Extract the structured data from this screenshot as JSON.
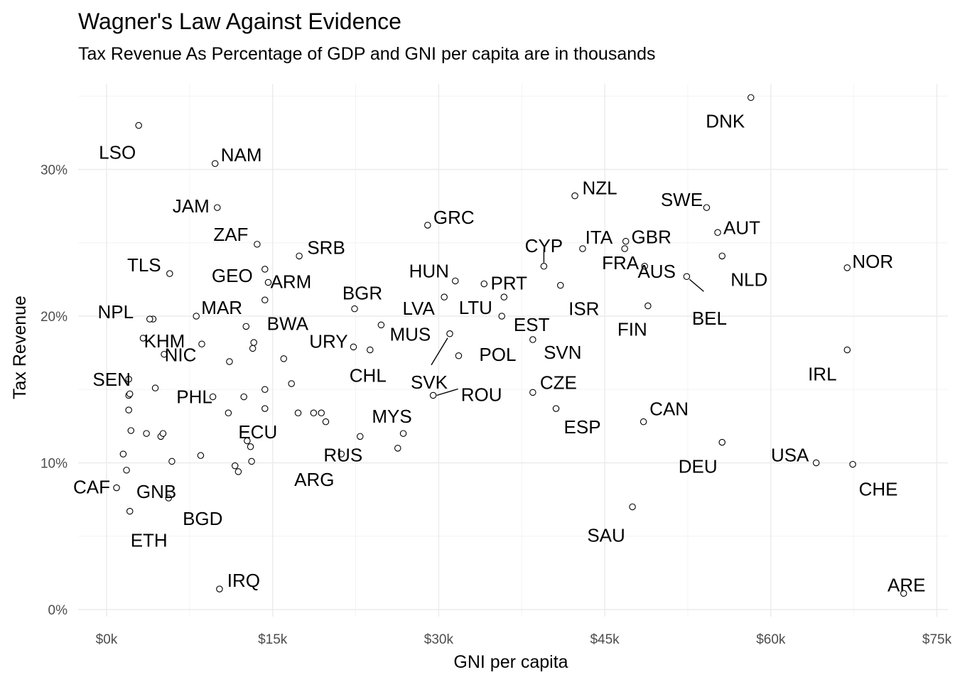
{
  "chart_data": {
    "type": "scatter",
    "title": "Wagner's Law Against Evidence",
    "subtitle": "Tax Revenue As Percentage of GDP and GNI per capita are in thousands",
    "xlabel": "GNI per capita",
    "ylabel": "Tax Revenue",
    "xlim": [
      -2.5,
      76
    ],
    "ylim": [
      -0.5,
      35.3
    ],
    "x_ticks": [
      {
        "value": 0,
        "label": "$0k"
      },
      {
        "value": 15,
        "label": "$15k"
      },
      {
        "value": 30,
        "label": "$30k"
      },
      {
        "value": 45,
        "label": "$45k"
      },
      {
        "value": 60,
        "label": "$60k"
      },
      {
        "value": 75,
        "label": "$75k"
      }
    ],
    "y_ticks": [
      {
        "value": 0,
        "label": "0%"
      },
      {
        "value": 10,
        "label": "10%"
      },
      {
        "value": 20,
        "label": "20%"
      },
      {
        "value": 30,
        "label": "30%"
      }
    ],
    "labeled_points": [
      {
        "code": "LSO",
        "x": 2.9,
        "y": 33.0
      },
      {
        "code": "NAM",
        "x": 9.8,
        "y": 30.4
      },
      {
        "code": "JAM",
        "x": 10.0,
        "y": 27.4
      },
      {
        "code": "ZAF",
        "x": 13.6,
        "y": 24.9
      },
      {
        "code": "SRB",
        "x": 17.4,
        "y": 24.1
      },
      {
        "code": "GEO",
        "x": 14.3,
        "y": 23.2
      },
      {
        "code": "ARM",
        "x": 14.6,
        "y": 22.3
      },
      {
        "code": "TLS",
        "x": 5.7,
        "y": 22.9
      },
      {
        "code": "BWA",
        "x": 14.3,
        "y": 21.1
      },
      {
        "code": "MAR",
        "x": 8.1,
        "y": 20.0
      },
      {
        "code": "NPL",
        "x": 3.9,
        "y": 19.8
      },
      {
        "code": "KHM",
        "x": 3.3,
        "y": 18.5
      },
      {
        "code": "NIC",
        "x": 5.2,
        "y": 17.4
      },
      {
        "code": "SEN",
        "x": 2.0,
        "y": 15.7
      },
      {
        "code": "PHL",
        "x": 9.6,
        "y": 14.5
      },
      {
        "code": "ECU",
        "x": 14.3,
        "y": 13.7
      },
      {
        "code": "URY",
        "x": 22.3,
        "y": 17.9
      },
      {
        "code": "BGR",
        "x": 22.4,
        "y": 20.5
      },
      {
        "code": "CHL",
        "x": 23.8,
        "y": 17.7
      },
      {
        "code": "MUS",
        "x": 24.8,
        "y": 19.4
      },
      {
        "code": "LVA",
        "x": 30.5,
        "y": 21.3
      },
      {
        "code": "HUN",
        "x": 31.5,
        "y": 22.4
      },
      {
        "code": "GRC",
        "x": 29.0,
        "y": 26.2
      },
      {
        "code": "PRT",
        "x": 34.1,
        "y": 22.2
      },
      {
        "code": "LTU",
        "x": 35.9,
        "y": 21.3
      },
      {
        "code": "EST",
        "x": 35.7,
        "y": 20.0
      },
      {
        "code": "SVK",
        "x": 31.0,
        "y": 18.8
      },
      {
        "code": "POL",
        "x": 31.8,
        "y": 17.3
      },
      {
        "code": "ROU",
        "x": 29.5,
        "y": 14.6
      },
      {
        "code": "MYS",
        "x": 26.8,
        "y": 12.0
      },
      {
        "code": "RUS",
        "x": 22.9,
        "y": 11.8
      },
      {
        "code": "ARG",
        "x": 21.2,
        "y": 10.6
      },
      {
        "code": "CYP",
        "x": 39.5,
        "y": 23.4
      },
      {
        "code": "ISR",
        "x": 41.0,
        "y": 22.1
      },
      {
        "code": "SVN",
        "x": 38.5,
        "y": 18.4
      },
      {
        "code": "CZE",
        "x": 38.5,
        "y": 14.8
      },
      {
        "code": "ESP",
        "x": 40.6,
        "y": 13.7
      },
      {
        "code": "NZL",
        "x": 42.3,
        "y": 28.2
      },
      {
        "code": "ITA",
        "x": 43.0,
        "y": 24.6
      },
      {
        "code": "FRA",
        "x": 46.8,
        "y": 24.6
      },
      {
        "code": "GBR",
        "x": 46.9,
        "y": 25.1
      },
      {
        "code": "AUS",
        "x": 48.6,
        "y": 23.4
      },
      {
        "code": "FIN",
        "x": 48.9,
        "y": 20.7
      },
      {
        "code": "CAN",
        "x": 48.5,
        "y": 12.8
      },
      {
        "code": "SAU",
        "x": 47.5,
        "y": 7.0
      },
      {
        "code": "BEL",
        "x": 52.4,
        "y": 22.7
      },
      {
        "code": "SWE",
        "x": 54.2,
        "y": 27.4
      },
      {
        "code": "AUT",
        "x": 55.2,
        "y": 25.7
      },
      {
        "code": "NLD",
        "x": 55.6,
        "y": 24.1
      },
      {
        "code": "DEU",
        "x": 55.6,
        "y": 11.4
      },
      {
        "code": "DNK",
        "x": 58.2,
        "y": 34.9
      },
      {
        "code": "NOR",
        "x": 66.9,
        "y": 23.3
      },
      {
        "code": "IRL",
        "x": 66.9,
        "y": 17.7
      },
      {
        "code": "USA",
        "x": 64.1,
        "y": 10.0
      },
      {
        "code": "CHE",
        "x": 67.4,
        "y": 9.9
      },
      {
        "code": "ARE",
        "x": 72.0,
        "y": 1.1
      },
      {
        "code": "GNB",
        "x": 1.8,
        "y": 9.5
      },
      {
        "code": "CAF",
        "x": 0.9,
        "y": 8.3
      },
      {
        "code": "ETH",
        "x": 2.1,
        "y": 6.7
      },
      {
        "code": "BGD",
        "x": 5.6,
        "y": 7.6
      },
      {
        "code": "IRQ",
        "x": 10.2,
        "y": 1.4
      }
    ],
    "unlabeled_points": [
      {
        "x": 1.5,
        "y": 10.6
      },
      {
        "x": 2.0,
        "y": 14.6
      },
      {
        "x": 2.1,
        "y": 14.7
      },
      {
        "x": 2.0,
        "y": 13.6
      },
      {
        "x": 2.2,
        "y": 12.2
      },
      {
        "x": 3.6,
        "y": 12.0
      },
      {
        "x": 4.4,
        "y": 15.1
      },
      {
        "x": 4.9,
        "y": 11.8
      },
      {
        "x": 5.1,
        "y": 12.0
      },
      {
        "x": 4.2,
        "y": 19.8
      },
      {
        "x": 8.6,
        "y": 18.1
      },
      {
        "x": 5.9,
        "y": 10.1
      },
      {
        "x": 8.5,
        "y": 10.5
      },
      {
        "x": 11.1,
        "y": 16.9
      },
      {
        "x": 11.0,
        "y": 13.4
      },
      {
        "x": 12.4,
        "y": 14.5
      },
      {
        "x": 12.7,
        "y": 11.5
      },
      {
        "x": 13.0,
        "y": 11.1
      },
      {
        "x": 11.6,
        "y": 9.8
      },
      {
        "x": 11.9,
        "y": 9.4
      },
      {
        "x": 12.6,
        "y": 19.3
      },
      {
        "x": 13.3,
        "y": 18.2
      },
      {
        "x": 13.2,
        "y": 17.8
      },
      {
        "x": 13.1,
        "y": 10.1
      },
      {
        "x": 14.3,
        "y": 15.0
      },
      {
        "x": 16.0,
        "y": 17.1
      },
      {
        "x": 16.7,
        "y": 15.4
      },
      {
        "x": 17.3,
        "y": 13.4
      },
      {
        "x": 18.7,
        "y": 13.4
      },
      {
        "x": 19.4,
        "y": 13.4
      },
      {
        "x": 19.8,
        "y": 12.8
      },
      {
        "x": 26.3,
        "y": 11.0
      }
    ]
  }
}
